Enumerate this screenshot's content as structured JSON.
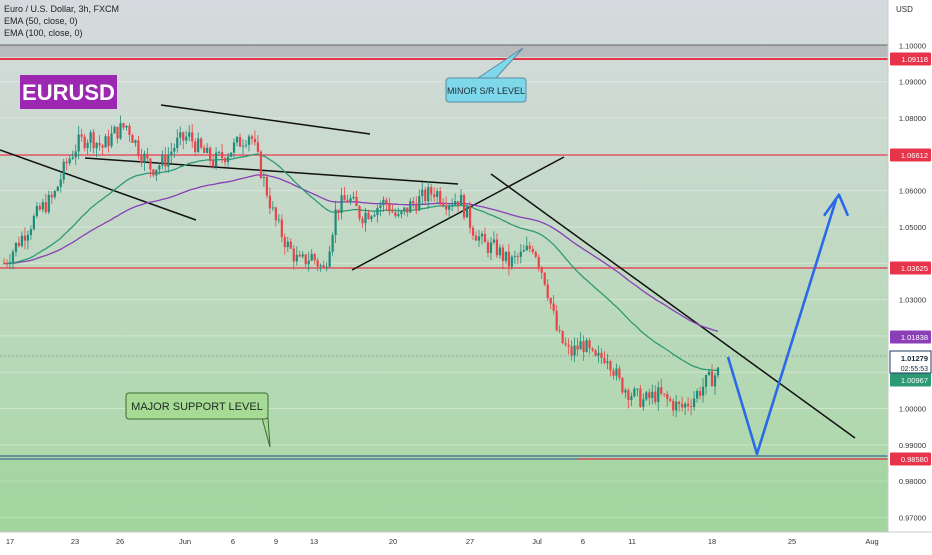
{
  "chart_title": "Euro / U.S. Dollar, 3h, FXCM",
  "indicators": [
    "EMA (50, close, 0)",
    "EMA (100, close, 0)"
  ],
  "symbol_badge": "EURUSD",
  "currency": "USD",
  "colors": {
    "background_top": "#d6dade",
    "background_bottom": "#a8d8a4",
    "upper_gray_band": "#b8babd",
    "up_candle": "#1f8c7a",
    "down_candle": "#e8444a",
    "ema50": "#2e9a74",
    "ema100": "#8a3fb8",
    "red_level": "#e8344a",
    "projection": "#2a6ae8",
    "badge_bg": "#9c27b0",
    "minor_callout_bg": "#7fd8ea",
    "major_callout_bg": "#a6da95"
  },
  "annotations": {
    "minor_label": "MINOR S/R LEVEL",
    "major_label": "MAJOR SUPPORT LEVEL"
  },
  "price_axis": {
    "ticks": [
      "1.10000",
      "1.09000",
      "1.08000",
      "1.07000",
      "1.06000",
      "1.05000",
      "1.04000",
      "1.03000",
      "1.02000",
      "1.01000",
      "1.00000",
      "0.99000",
      "0.98000",
      "0.97000"
    ],
    "badges": [
      {
        "label": "1.09118",
        "type": "level"
      },
      {
        "label": "1.06612",
        "type": "level"
      },
      {
        "label": "1.03625",
        "type": "level"
      },
      {
        "label": "1.01838",
        "type": "ema100"
      },
      {
        "label": "1.01279",
        "sub": "02:55:53",
        "type": "price"
      },
      {
        "label": "1.00967",
        "type": "ema50"
      },
      {
        "label": "0.98580",
        "type": "level"
      }
    ]
  },
  "time_axis": {
    "labels": [
      "17",
      "23",
      "26",
      "Jun",
      "6",
      "9",
      "13",
      "20",
      "27",
      "Jul",
      "6",
      "11",
      "18",
      "25",
      "Aug"
    ]
  },
  "chart_data": {
    "type": "candlestick",
    "title": "Euro / U.S. Dollar, 3h, FXCM",
    "y_unit": "USD",
    "ylim": [
      0.966,
      1.1125
    ],
    "horizontal_levels": [
      1.09118,
      1.06612,
      1.03625,
      0.9858
    ],
    "current_price": 1.01279,
    "ema50_last": 1.00967,
    "ema100_last": 1.01838,
    "price_path": [
      1.04,
      1.045,
      1.05,
      1.055,
      1.058,
      1.067,
      1.073,
      1.075,
      1.072,
      1.076,
      1.078,
      1.071,
      1.066,
      1.068,
      1.073,
      1.075,
      1.071,
      1.068,
      1.07,
      1.073,
      1.076,
      1.064,
      1.052,
      1.045,
      1.04,
      1.042,
      1.038,
      1.055,
      1.058,
      1.053,
      1.055,
      1.057,
      1.052,
      1.056,
      1.058,
      1.06,
      1.057,
      1.058,
      1.05,
      1.045,
      1.044,
      1.04,
      1.042,
      1.045,
      1.035,
      1.02,
      1.015,
      1.018,
      1.013,
      1.015,
      1.007,
      1.004,
      1.002,
      1.004,
      1.002,
      1.0,
      1.003,
      1.007,
      1.01
    ],
    "projection_path": [
      1.0142,
      0.9875,
      1.0575
    ]
  }
}
